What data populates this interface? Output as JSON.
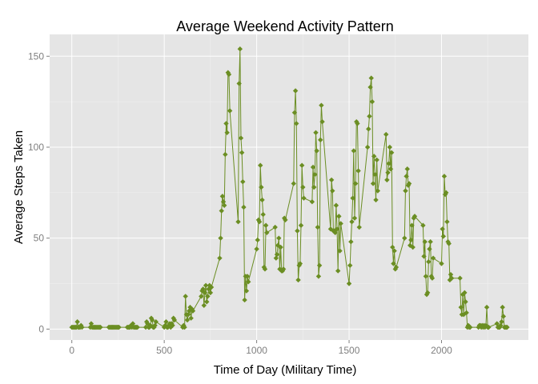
{
  "chart_data": {
    "type": "line",
    "title": "Average Weekend Activity Pattern",
    "xlabel": "Time of Day (Military Time)",
    "ylabel": "Average Steps Taken",
    "xlim": [
      -120,
      2470
    ],
    "ylim": [
      -6,
      162
    ],
    "xticks": [
      0,
      500,
      1000,
      1500,
      2000
    ],
    "yticks": [
      0,
      50,
      100,
      150
    ],
    "grid": true,
    "colors": {
      "panel": "#e5e5e5",
      "grid_major": "#ffffff",
      "grid_minor": "#f2f2f2",
      "series": "#6b8e23",
      "tick": "#7f7f7f"
    },
    "series": [
      {
        "points": [
          [
            0,
            1
          ],
          [
            5,
            1
          ],
          [
            10,
            1
          ],
          [
            15,
            1
          ],
          [
            20,
            1
          ],
          [
            25,
            1
          ],
          [
            30,
            4
          ],
          [
            35,
            1
          ],
          [
            40,
            1
          ],
          [
            45,
            1
          ],
          [
            50,
            2
          ],
          [
            55,
            1
          ],
          [
            100,
            1
          ],
          [
            105,
            3
          ],
          [
            110,
            1
          ],
          [
            115,
            1
          ],
          [
            120,
            1
          ],
          [
            125,
            1
          ],
          [
            130,
            1
          ],
          [
            135,
            1
          ],
          [
            140,
            1
          ],
          [
            145,
            1
          ],
          [
            150,
            1
          ],
          [
            155,
            1
          ],
          [
            200,
            1
          ],
          [
            205,
            1
          ],
          [
            210,
            1
          ],
          [
            215,
            1
          ],
          [
            220,
            1
          ],
          [
            225,
            1
          ],
          [
            230,
            1
          ],
          [
            235,
            1
          ],
          [
            240,
            1
          ],
          [
            245,
            1
          ],
          [
            250,
            1
          ],
          [
            255,
            1
          ],
          [
            300,
            1
          ],
          [
            305,
            1
          ],
          [
            310,
            1
          ],
          [
            315,
            1
          ],
          [
            320,
            2
          ],
          [
            325,
            1
          ],
          [
            330,
            3
          ],
          [
            335,
            1
          ],
          [
            340,
            1
          ],
          [
            345,
            1
          ],
          [
            350,
            1
          ],
          [
            355,
            1
          ],
          [
            400,
            1
          ],
          [
            405,
            4
          ],
          [
            410,
            3
          ],
          [
            415,
            1
          ],
          [
            420,
            1
          ],
          [
            425,
            2
          ],
          [
            430,
            6
          ],
          [
            435,
            5
          ],
          [
            440,
            1
          ],
          [
            445,
            1
          ],
          [
            450,
            2
          ],
          [
            455,
            4
          ],
          [
            500,
            1
          ],
          [
            505,
            2
          ],
          [
            510,
            4
          ],
          [
            515,
            1
          ],
          [
            520,
            1
          ],
          [
            525,
            2
          ],
          [
            530,
            3
          ],
          [
            535,
            1
          ],
          [
            540,
            3
          ],
          [
            545,
            2
          ],
          [
            550,
            6
          ],
          [
            555,
            5
          ],
          [
            600,
            1
          ],
          [
            605,
            2
          ],
          [
            610,
            1
          ],
          [
            615,
            18
          ],
          [
            620,
            8
          ],
          [
            625,
            5
          ],
          [
            630,
            8
          ],
          [
            635,
            10
          ],
          [
            640,
            12
          ],
          [
            645,
            6
          ],
          [
            650,
            11
          ],
          [
            655,
            10
          ],
          [
            700,
            18
          ],
          [
            705,
            21
          ],
          [
            710,
            22
          ],
          [
            715,
            13
          ],
          [
            720,
            20
          ],
          [
            725,
            24
          ],
          [
            730,
            15
          ],
          [
            735,
            18
          ],
          [
            740,
            22
          ],
          [
            745,
            24
          ],
          [
            750,
            20
          ],
          [
            755,
            23
          ],
          [
            800,
            39
          ],
          [
            805,
            50
          ],
          [
            810,
            65
          ],
          [
            815,
            73
          ],
          [
            820,
            70
          ],
          [
            825,
            68
          ],
          [
            830,
            96
          ],
          [
            835,
            113
          ],
          [
            840,
            108
          ],
          [
            845,
            141
          ],
          [
            850,
            140
          ],
          [
            855,
            120
          ],
          [
            900,
            59
          ],
          [
            905,
            135
          ],
          [
            910,
            154
          ],
          [
            915,
            105
          ],
          [
            920,
            97
          ],
          [
            925,
            81
          ],
          [
            930,
            67
          ],
          [
            935,
            16
          ],
          [
            940,
            29
          ],
          [
            945,
            21
          ],
          [
            950,
            29
          ],
          [
            955,
            26
          ],
          [
            1000,
            44
          ],
          [
            1005,
            49
          ],
          [
            1010,
            60
          ],
          [
            1015,
            59
          ],
          [
            1020,
            90
          ],
          [
            1025,
            78
          ],
          [
            1030,
            71
          ],
          [
            1035,
            63
          ],
          [
            1040,
            34
          ],
          [
            1045,
            33
          ],
          [
            1050,
            57
          ],
          [
            1055,
            53
          ],
          [
            1100,
            56
          ],
          [
            1105,
            39
          ],
          [
            1110,
            41
          ],
          [
            1115,
            46
          ],
          [
            1120,
            50
          ],
          [
            1125,
            33
          ],
          [
            1130,
            45
          ],
          [
            1135,
            32
          ],
          [
            1140,
            32
          ],
          [
            1145,
            33
          ],
          [
            1150,
            61
          ],
          [
            1155,
            60
          ],
          [
            1200,
            80
          ],
          [
            1205,
            119
          ],
          [
            1210,
            131
          ],
          [
            1215,
            113
          ],
          [
            1220,
            54
          ],
          [
            1225,
            27
          ],
          [
            1230,
            35
          ],
          [
            1235,
            36
          ],
          [
            1240,
            57
          ],
          [
            1245,
            90
          ],
          [
            1250,
            78
          ],
          [
            1255,
            72
          ],
          [
            1300,
            70
          ],
          [
            1305,
            89
          ],
          [
            1310,
            78
          ],
          [
            1315,
            85
          ],
          [
            1320,
            108
          ],
          [
            1325,
            98
          ],
          [
            1330,
            56
          ],
          [
            1335,
            29
          ],
          [
            1340,
            35
          ],
          [
            1345,
            104
          ],
          [
            1350,
            123
          ],
          [
            1355,
            114
          ],
          [
            1400,
            55
          ],
          [
            1405,
            82
          ],
          [
            1410,
            76
          ],
          [
            1415,
            54
          ],
          [
            1420,
            54
          ],
          [
            1425,
            53
          ],
          [
            1430,
            68
          ],
          [
            1435,
            55
          ],
          [
            1440,
            32
          ],
          [
            1445,
            62
          ],
          [
            1450,
            43
          ],
          [
            1455,
            58
          ],
          [
            1500,
            25
          ],
          [
            1505,
            35
          ],
          [
            1510,
            48
          ],
          [
            1515,
            59
          ],
          [
            1520,
            72
          ],
          [
            1525,
            98
          ],
          [
            1530,
            61
          ],
          [
            1535,
            80
          ],
          [
            1540,
            114
          ],
          [
            1545,
            113
          ],
          [
            1550,
            87
          ],
          [
            1555,
            56
          ],
          [
            1600,
            100
          ],
          [
            1605,
            110
          ],
          [
            1610,
            117
          ],
          [
            1615,
            133
          ],
          [
            1620,
            138
          ],
          [
            1625,
            125
          ],
          [
            1630,
            80
          ],
          [
            1635,
            95
          ],
          [
            1640,
            85
          ],
          [
            1645,
            71
          ],
          [
            1650,
            93
          ],
          [
            1655,
            76
          ],
          [
            1700,
            107
          ],
          [
            1705,
            82
          ],
          [
            1710,
            86
          ],
          [
            1715,
            91
          ],
          [
            1720,
            100
          ],
          [
            1725,
            88
          ],
          [
            1730,
            97
          ],
          [
            1735,
            45
          ],
          [
            1740,
            36
          ],
          [
            1745,
            43
          ],
          [
            1750,
            33
          ],
          [
            1755,
            34
          ],
          [
            1800,
            50
          ],
          [
            1805,
            76
          ],
          [
            1810,
            84
          ],
          [
            1815,
            88
          ],
          [
            1820,
            79
          ],
          [
            1825,
            80
          ],
          [
            1830,
            46
          ],
          [
            1835,
            49
          ],
          [
            1840,
            57
          ],
          [
            1845,
            45
          ],
          [
            1850,
            61
          ],
          [
            1855,
            62
          ],
          [
            1900,
            57
          ],
          [
            1905,
            40
          ],
          [
            1910,
            48
          ],
          [
            1915,
            29
          ],
          [
            1920,
            19
          ],
          [
            1925,
            20
          ],
          [
            1930,
            37
          ],
          [
            1935,
            44
          ],
          [
            1940,
            48
          ],
          [
            1945,
            29
          ],
          [
            1950,
            28
          ],
          [
            1955,
            39
          ],
          [
            2000,
            36
          ],
          [
            2005,
            55
          ],
          [
            2010,
            51
          ],
          [
            2015,
            84
          ],
          [
            2020,
            74
          ],
          [
            2025,
            75
          ],
          [
            2030,
            59
          ],
          [
            2035,
            48
          ],
          [
            2040,
            47
          ],
          [
            2045,
            27
          ],
          [
            2050,
            30
          ],
          [
            2055,
            28
          ],
          [
            2100,
            28
          ],
          [
            2105,
            12
          ],
          [
            2110,
            8
          ],
          [
            2115,
            19
          ],
          [
            2120,
            8
          ],
          [
            2125,
            20
          ],
          [
            2130,
            15
          ],
          [
            2135,
            9
          ],
          [
            2140,
            1
          ],
          [
            2145,
            2
          ],
          [
            2150,
            1
          ],
          [
            2155,
            1
          ],
          [
            2200,
            1
          ],
          [
            2205,
            2
          ],
          [
            2210,
            2
          ],
          [
            2215,
            1
          ],
          [
            2220,
            2
          ],
          [
            2225,
            1
          ],
          [
            2230,
            2
          ],
          [
            2235,
            1
          ],
          [
            2240,
            2
          ],
          [
            2245,
            12
          ],
          [
            2250,
            1
          ],
          [
            2255,
            1
          ],
          [
            2300,
            3
          ],
          [
            2305,
            1
          ],
          [
            2310,
            1
          ],
          [
            2315,
            1
          ],
          [
            2320,
            2
          ],
          [
            2325,
            4
          ],
          [
            2330,
            12
          ],
          [
            2335,
            7
          ],
          [
            2340,
            1
          ],
          [
            2345,
            1
          ],
          [
            2350,
            1
          ],
          [
            2355,
            1
          ]
        ]
      }
    ]
  }
}
